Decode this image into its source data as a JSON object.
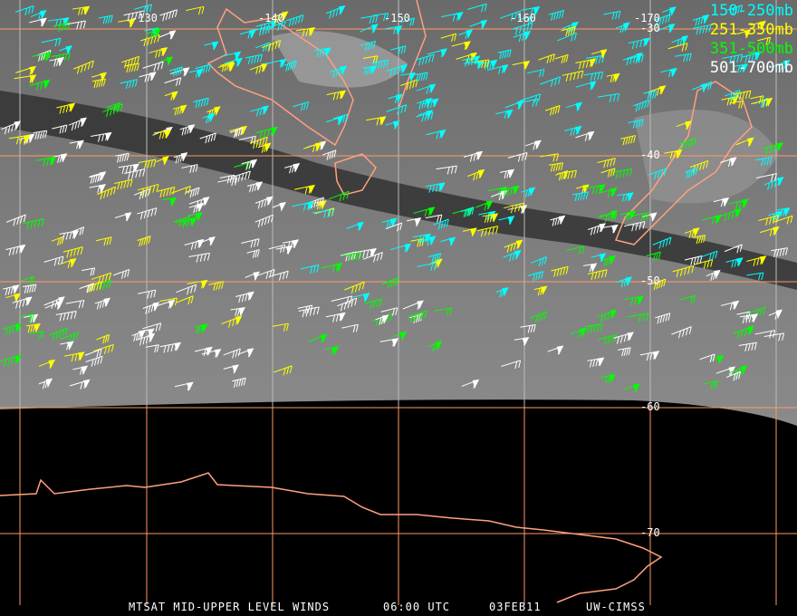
{
  "legend": [
    {
      "label": "150-250mb",
      "color": "#00ffff"
    },
    {
      "label": "251-350mb",
      "color": "#ffff00"
    },
    {
      "label": "351-500mb",
      "color": "#00ff00"
    },
    {
      "label": "501-700mb",
      "color": "#ffffff"
    }
  ],
  "longitude_labels": [
    "-130",
    "-140",
    "-150",
    "-160",
    "-170"
  ],
  "latitude_labels": [
    "-30",
    "-40",
    "-50",
    "-60",
    "-70"
  ],
  "caption": {
    "title": "MTSAT MID-UPPER LEVEL WINDS",
    "time": "06:00 UTC",
    "date": "03FEB11",
    "source": "UW-CIMSS"
  },
  "colors": {
    "grid": "#ff9966",
    "coast": "#ffa080",
    "background": "#000000"
  }
}
